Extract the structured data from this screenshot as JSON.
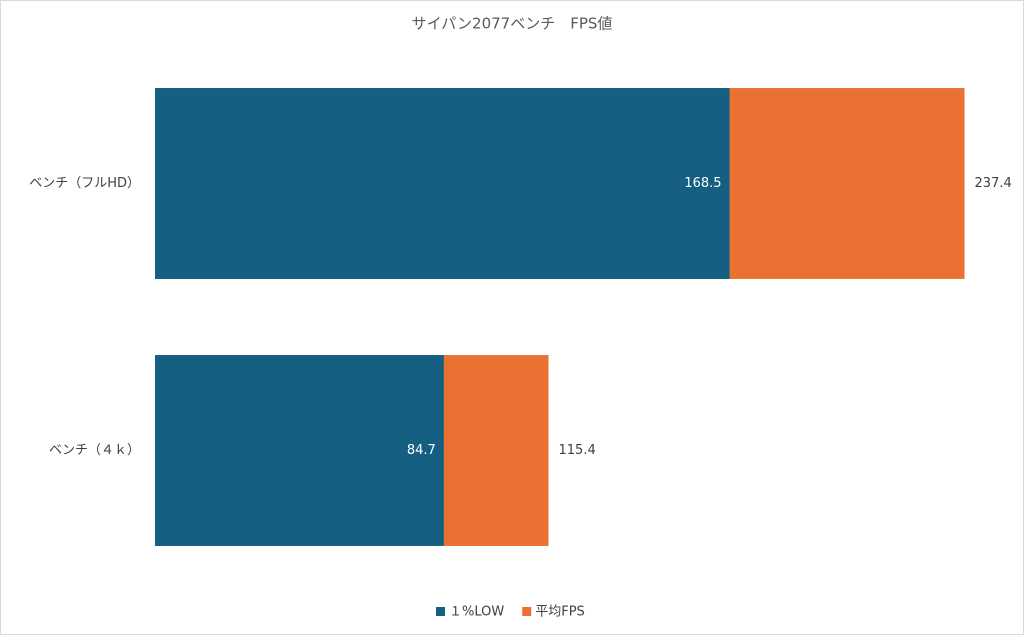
{
  "chart_data": {
    "type": "bar_overlap",
    "orientation": "horizontal",
    "title": "サイパン2077ベンチ　FPS値",
    "categories": [
      "ベンチ（フルHD）",
      "ベンチ（４ｋ）"
    ],
    "series": [
      {
        "name": "平均FPS",
        "color": "#e97132",
        "values": [
          237.4,
          115.4
        ]
      },
      {
        "name": "１%LOW",
        "color": "#156082",
        "values": [
          168.5,
          84.7
        ]
      }
    ],
    "legend_order": [
      1,
      0
    ],
    "xlim": [
      0,
      250
    ],
    "legend": "bottom"
  }
}
